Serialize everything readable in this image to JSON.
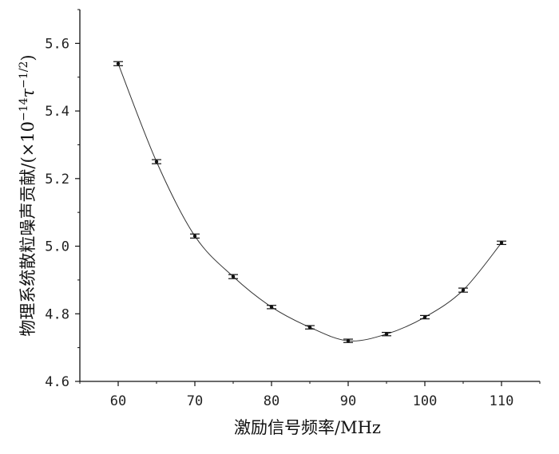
{
  "chart_data": {
    "type": "line",
    "xlabel": "激励信号频率/MHz",
    "ylabel": "物理系统散粒噪声贡献/(×10^-14 τ^-1/2)",
    "ylabel_main": "物理系统散粒噪声贡献/(×10",
    "ylabel_exp1": "−14",
    "ylabel_tau": "τ",
    "ylabel_exp2": "−1/2",
    "ylabel_close": ")",
    "xlim": [
      55,
      115
    ],
    "ylim": [
      4.6,
      5.7
    ],
    "x_ticks": [
      60,
      70,
      80,
      90,
      100,
      110
    ],
    "x_tick_labels": [
      "60",
      "70",
      "80",
      "90",
      "100",
      "110"
    ],
    "y_ticks": [
      4.6,
      4.8,
      5.0,
      5.2,
      5.4,
      5.6
    ],
    "y_tick_labels": [
      "4.6",
      "4.8",
      "5.0",
      "5.2",
      "5.4",
      "5.6"
    ],
    "grid": false,
    "legend": "none",
    "series": [
      {
        "x": [
          60,
          65,
          70,
          75,
          80,
          85,
          90,
          95,
          100,
          105,
          110
        ],
        "y": [
          5.54,
          5.25,
          5.03,
          4.91,
          4.82,
          4.76,
          4.72,
          4.74,
          4.79,
          4.87,
          5.01
        ],
        "error": [
          0.006,
          0.006,
          0.006,
          0.006,
          0.005,
          0.005,
          0.005,
          0.005,
          0.005,
          0.006,
          0.005
        ],
        "color": "#333333"
      }
    ]
  }
}
